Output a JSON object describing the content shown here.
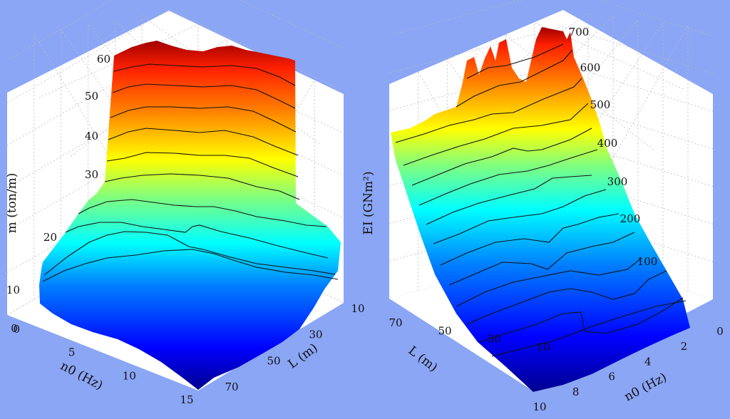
{
  "background": "#8aa6f5",
  "chart_data": [
    {
      "type": "surface3d",
      "zlabel": "m (ton/m)",
      "xlabel": "n0 (Hz)",
      "ylabel": "L (m)",
      "z_ticks": [
        "0",
        "10",
        "20",
        "30",
        "40",
        "50",
        "60"
      ],
      "x_ticks": [
        "0",
        "5",
        "10",
        "15"
      ],
      "y_ticks": [
        "10",
        "30",
        "50",
        "70"
      ],
      "zlim": [
        0,
        65
      ],
      "xlim": [
        0,
        15
      ],
      "ylim": [
        10,
        80
      ],
      "grid": true,
      "colormap": "jet",
      "contour_levels": [
        10,
        15,
        20,
        25,
        30,
        35,
        40,
        45,
        50,
        55
      ]
    },
    {
      "type": "surface3d",
      "zlabel": "EI (GNm²)",
      "xlabel": "n0 (Hz)",
      "ylabel": "L (m)",
      "z_ticks": [
        "100",
        "200",
        "300",
        "400",
        "500",
        "600",
        "700"
      ],
      "x_ticks": [
        "0",
        "2",
        "4",
        "6",
        "8",
        "10"
      ],
      "y_ticks": [
        "10",
        "30",
        "50",
        "70"
      ],
      "zlim": [
        0,
        720
      ],
      "xlim": [
        0,
        10
      ],
      "ylim": [
        10,
        80
      ],
      "grid": true,
      "colormap": "jet",
      "contour_levels": [
        50,
        100,
        150,
        200,
        250,
        300,
        350,
        400,
        450,
        500,
        550,
        600,
        650
      ]
    }
  ]
}
